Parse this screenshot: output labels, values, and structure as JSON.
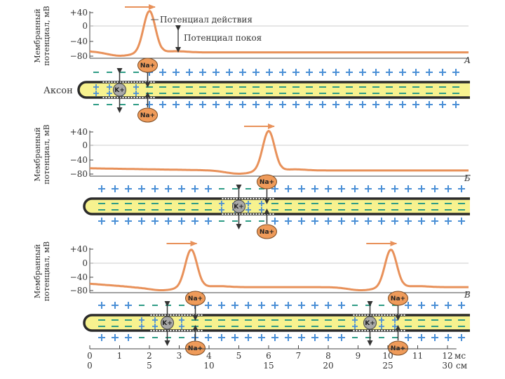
{
  "ylabel_line1": "Мембранный",
  "ylabel_line2": "потенциал, мВ",
  "y_ticks": [
    "+40",
    "0",
    "−40",
    "−80"
  ],
  "annotation_action": "Потенциал действия",
  "annotation_rest": "Потенциал покоя",
  "axon_label": "Аксон",
  "panels": [
    {
      "letter": "А",
      "peaks_ms": [
        2.0
      ],
      "channels_ms": [
        1.0
      ]
    },
    {
      "letter": "Б",
      "peaks_ms": [
        6.0
      ],
      "channels_ms": [
        5.0
      ]
    },
    {
      "letter": "В",
      "peaks_ms": [
        3.4,
        10.1
      ],
      "channels_ms": [
        2.6,
        9.4
      ]
    }
  ],
  "ions": {
    "na": "Na+",
    "k": "K+"
  },
  "x_axis_ms": [
    "0",
    "1",
    "2",
    "3",
    "4",
    "5",
    "6",
    "7",
    "8",
    "9",
    "10",
    "11",
    "12"
  ],
  "x_unit_ms": "мс",
  "x_axis_cm": [
    "0",
    "5",
    "10",
    "15",
    "20",
    "25",
    "30"
  ],
  "x_unit_cm": "см",
  "colors": {
    "curve": "#e8915a",
    "axon": "#f7f28f",
    "axon_border": "#2b2b2b",
    "plus": "#4a8fd6",
    "minus": "#2f9c86",
    "ion": "#ef9b5a",
    "arrow": "#e8915a"
  }
}
